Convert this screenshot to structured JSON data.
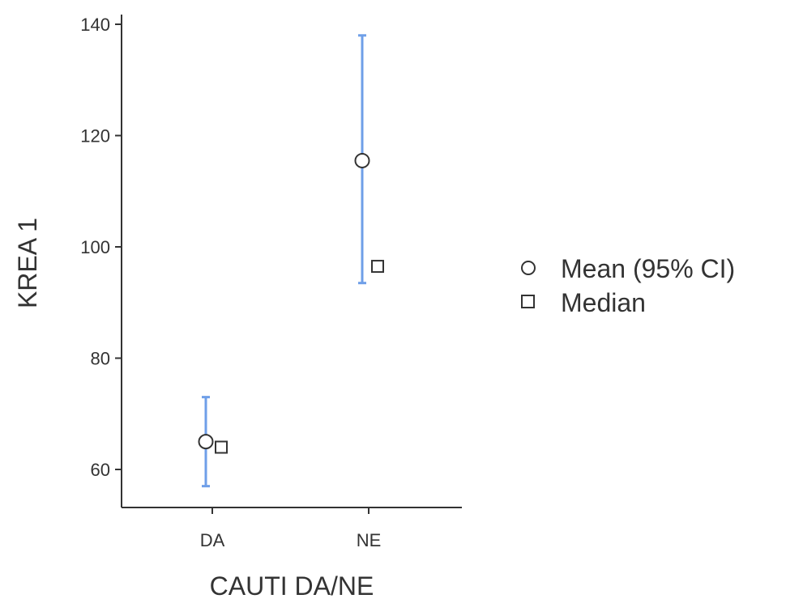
{
  "chart_data": {
    "type": "scatter",
    "title": "",
    "xlabel": "CAUTI DA/NE",
    "ylabel": "KREA 1",
    "categories": [
      "DA",
      "NE"
    ],
    "ylim": [
      53,
      142
    ],
    "yticks": [
      60,
      80,
      100,
      120,
      140
    ],
    "grid": false,
    "legend_position": "right",
    "series": [
      {
        "name": "Mean (95% CI)",
        "marker": "circle",
        "values": [
          65,
          115.5
        ],
        "ci_lower": [
          57,
          93.5
        ],
        "ci_upper": [
          73,
          138
        ]
      },
      {
        "name": "Median",
        "marker": "square",
        "values": [
          64,
          96.5
        ]
      }
    ],
    "colors": {
      "error_bar": "#6f9fe8",
      "axis": "#333333",
      "marker_fill": "#ffffff",
      "marker_stroke": "#333333"
    }
  }
}
